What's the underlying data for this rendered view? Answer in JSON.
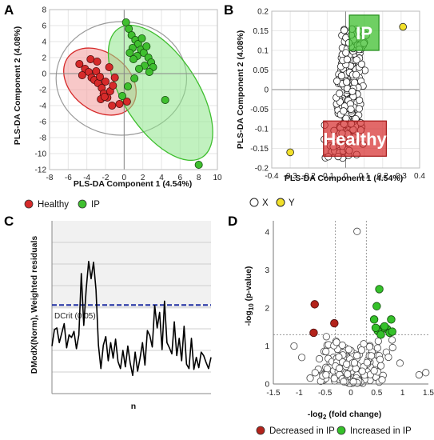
{
  "figure": {
    "background": "#ffffff"
  },
  "panels": {
    "a": {
      "letter": "A"
    },
    "b": {
      "letter": "B"
    },
    "c": {
      "letter": "C"
    },
    "d": {
      "letter": "D"
    }
  },
  "colors": {
    "healthy": "#d62a2a",
    "ip": "#3fbf2f",
    "healthy_fill": "#f4a3a3",
    "ip_fill": "#8ee58a",
    "decreased": "#b3231b",
    "increased": "#35c12a",
    "dcrit_line": "#1f2fa3",
    "yellow_point": "#f2e02a"
  },
  "chart_data": [
    {
      "panel": "A",
      "type": "scatter",
      "xlabel": "PLS-DA Component 1 (4.54%)",
      "ylabel": "PLS-DA Component 2 (4.08%)",
      "xlim": [
        -8,
        10
      ],
      "ylim": [
        -12,
        8
      ],
      "xticks": [
        -8,
        -6,
        -4,
        -2,
        0,
        2,
        4,
        6,
        8,
        10
      ],
      "yticks": [
        -12,
        -10,
        -8,
        -6,
        -4,
        -2,
        0,
        2,
        4,
        6,
        8
      ],
      "legend": {
        "position": "bottom",
        "entries": [
          "Healthy",
          "IP"
        ]
      },
      "series": [
        {
          "name": "Healthy",
          "points": [
            [
              -4.8,
              1.2
            ],
            [
              -4.2,
              0.6
            ],
            [
              -3.8,
              0.2
            ],
            [
              -3.5,
              -0.5
            ],
            [
              -4.5,
              -0.2
            ],
            [
              -3.2,
              -0.8
            ],
            [
              -3.0,
              0.3
            ],
            [
              -2.8,
              -1.2
            ],
            [
              -2.6,
              -0.4
            ],
            [
              -2.4,
              -1.8
            ],
            [
              -2.2,
              -2.5
            ],
            [
              -2.0,
              -1.0
            ],
            [
              -1.8,
              -3.0
            ],
            [
              -1.5,
              -2.2
            ],
            [
              -1.2,
              -1.5
            ],
            [
              -1.0,
              -0.5
            ],
            [
              -2.5,
              -3.2
            ],
            [
              -3.6,
              1.8
            ],
            [
              -2.9,
              1.5
            ],
            [
              -1.6,
              0.8
            ],
            [
              -1.3,
              -4.0
            ],
            [
              -0.5,
              -3.8
            ],
            [
              0.3,
              -3.5
            ],
            [
              -2.1,
              -2.9
            ]
          ]
        },
        {
          "name": "IP",
          "points": [
            [
              0.2,
              6.4
            ],
            [
              0.5,
              5.6
            ],
            [
              0.8,
              4.8
            ],
            [
              1.2,
              4.2
            ],
            [
              1.5,
              3.7
            ],
            [
              0.9,
              3.2
            ],
            [
              1.8,
              3.0
            ],
            [
              2.1,
              2.6
            ],
            [
              1.4,
              2.2
            ],
            [
              2.6,
              2.0
            ],
            [
              2.9,
              1.4
            ],
            [
              2.2,
              1.0
            ],
            [
              3.1,
              0.8
            ],
            [
              1.0,
              1.8
            ],
            [
              0.6,
              2.6
            ],
            [
              1.9,
              4.4
            ],
            [
              2.4,
              3.4
            ],
            [
              0.4,
              -1.6
            ],
            [
              1.1,
              -0.6
            ],
            [
              -0.2,
              -2.8
            ],
            [
              4.4,
              -3.3
            ],
            [
              8.0,
              -11.4
            ],
            [
              2.7,
              0.2
            ],
            [
              1.6,
              0.6
            ]
          ]
        }
      ],
      "ellipses": [
        "Healthy",
        "IP",
        "all"
      ]
    },
    {
      "panel": "B",
      "type": "scatter",
      "xlabel": "PLS-DA Component 1 (4.54%)",
      "ylabel": "PLS-DA Component 2 (4.08%)",
      "xlim": [
        -0.4,
        0.4
      ],
      "ylim": [
        -0.2,
        0.2
      ],
      "xticks": [
        -0.4,
        -0.3,
        -0.2,
        -0.1,
        0,
        0.1,
        0.2,
        0.3,
        0.4
      ],
      "yticks": [
        -0.2,
        -0.15,
        -0.1,
        -0.05,
        0,
        0.05,
        0.1,
        0.15,
        0.2
      ],
      "legend": {
        "position": "bottom",
        "entries": [
          "X",
          "Y"
        ]
      },
      "highlight_boxes": [
        {
          "label": "IP",
          "x_range": [
            0.02,
            0.18
          ],
          "y_range": [
            0.1,
            0.19
          ]
        },
        {
          "label": "Healthy",
          "x_range": [
            -0.12,
            0.22
          ],
          "y_range": [
            -0.17,
            -0.08
          ]
        }
      ],
      "y_points": [
        [
          0.31,
          0.16
        ],
        [
          -0.3,
          -0.16
        ]
      ]
    },
    {
      "panel": "C",
      "type": "line",
      "xlabel": "n",
      "ylabel": "DModX(Norm), Weighted residuals",
      "threshold_label": "DCrit (0.05)",
      "values": [
        1.1,
        1.48,
        1.52,
        1.18,
        1.4,
        1.62,
        1.06,
        1.36,
        1.3,
        1.44,
        1.04,
        1.36,
        2.78,
        1.58,
        2.42,
        3.06,
        2.66,
        3.04,
        2.4,
        1.12,
        0.58,
        1.12,
        1.32,
        0.76,
        1.18,
        0.82,
        1.26,
        0.74,
        0.58,
        1.0,
        0.62,
        1.1,
        0.7,
        0.42,
        0.96,
        0.52,
        0.82,
        1.18,
        0.66,
        1.46,
        1.34,
        1.08,
        2.04,
        1.52,
        1.88,
        1.02,
        2.14,
        1.18,
        1.06,
        0.92,
        1.66,
        0.88,
        1.28,
        0.76,
        1.56,
        0.68,
        0.58,
        1.28,
        0.56,
        0.84,
        0.6,
        0.96,
        0.88,
        0.72,
        0.58,
        0.84
      ]
    },
    {
      "panel": "D",
      "type": "scatter",
      "xlabel": "-log2 (fold change)",
      "ylabel": "-log10 (p-value)",
      "xlim": [
        -1.5,
        1.5
      ],
      "ylim": [
        0,
        4.3
      ],
      "xticks": [
        -1.5,
        -1,
        -0.5,
        0,
        0.5,
        1,
        1.5
      ],
      "yticks": [
        0,
        1,
        2,
        3,
        4
      ],
      "legend": {
        "position": "bottom",
        "entries": [
          "Decreased in IP",
          "Increased in IP"
        ]
      },
      "decreased": [
        [
          -0.7,
          2.1
        ],
        [
          -0.72,
          1.35
        ],
        [
          -0.32,
          1.6
        ]
      ],
      "increased": [
        [
          0.55,
          2.5
        ],
        [
          0.5,
          2.05
        ],
        [
          0.45,
          1.7
        ],
        [
          0.78,
          1.7
        ],
        [
          0.7,
          1.45
        ],
        [
          0.6,
          1.45
        ],
        [
          0.52,
          1.4
        ],
        [
          0.65,
          1.52
        ],
        [
          0.75,
          1.35
        ],
        [
          0.8,
          1.38
        ],
        [
          0.58,
          1.3
        ],
        [
          0.48,
          1.48
        ]
      ]
    }
  ]
}
